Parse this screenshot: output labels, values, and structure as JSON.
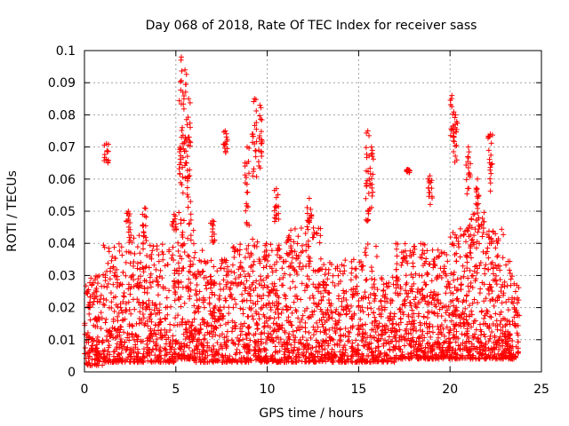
{
  "chart_data": {
    "type": "scatter",
    "title": "Day 068 of 2018, Rate Of TEC Index for receiver sass",
    "xlabel": "GPS time / hours",
    "ylabel": "ROTI / TECUs",
    "xlim": [
      0,
      25
    ],
    "ylim": [
      0,
      0.1
    ],
    "x_ticks": [
      0,
      5,
      10,
      15,
      20,
      25
    ],
    "y_ticks": [
      0,
      0.01,
      0.02,
      0.03,
      0.04,
      0.05,
      0.06,
      0.07,
      0.08,
      0.09,
      0.1
    ],
    "x_tick_labels": [
      "0",
      "5",
      "10",
      "15",
      "20",
      "25"
    ],
    "y_tick_labels": [
      "0",
      "0.01",
      "0.02",
      "0.03",
      "0.04",
      "0.05",
      "0.06",
      "0.07",
      "0.08",
      "0.09",
      "0.1"
    ],
    "grid": true,
    "marker": "+",
    "marker_color": "#ff0000",
    "series": [
      {
        "bands": [
          {
            "x_range": [
              0,
              1
            ],
            "y_range": [
              0.002,
              0.03
            ],
            "density": 140
          },
          {
            "x_range": [
              1,
              2
            ],
            "y_range": [
              0.003,
              0.04
            ],
            "density": 140
          },
          {
            "x_range": [
              2,
              3
            ],
            "y_range": [
              0.003,
              0.045
            ],
            "density": 130
          },
          {
            "x_range": [
              3,
              4
            ],
            "y_range": [
              0.003,
              0.042
            ],
            "density": 140
          },
          {
            "x_range": [
              4,
              5
            ],
            "y_range": [
              0.003,
              0.04
            ],
            "density": 130
          },
          {
            "x_range": [
              5,
              6
            ],
            "y_range": [
              0.004,
              0.05
            ],
            "density": 150
          },
          {
            "x_range": [
              6,
              7
            ],
            "y_range": [
              0.003,
              0.038
            ],
            "density": 140
          },
          {
            "x_range": [
              7,
              8
            ],
            "y_range": [
              0.003,
              0.035
            ],
            "density": 130
          },
          {
            "x_range": [
              8,
              9
            ],
            "y_range": [
              0.003,
              0.04
            ],
            "density": 130
          },
          {
            "x_range": [
              9,
              10
            ],
            "y_range": [
              0.003,
              0.042
            ],
            "density": 150
          },
          {
            "x_range": [
              10,
              11
            ],
            "y_range": [
              0.003,
              0.04
            ],
            "density": 140
          },
          {
            "x_range": [
              11,
              12
            ],
            "y_range": [
              0.003,
              0.045
            ],
            "density": 140
          },
          {
            "x_range": [
              12,
              13
            ],
            "y_range": [
              0.003,
              0.045
            ],
            "density": 140
          },
          {
            "x_range": [
              13,
              14
            ],
            "y_range": [
              0.003,
              0.035
            ],
            "density": 130
          },
          {
            "x_range": [
              14,
              15
            ],
            "y_range": [
              0.003,
              0.035
            ],
            "density": 130
          },
          {
            "x_range": [
              15,
              16
            ],
            "y_range": [
              0.003,
              0.04
            ],
            "density": 130
          },
          {
            "x_range": [
              16,
              17
            ],
            "y_range": [
              0.003,
              0.03
            ],
            "density": 120
          },
          {
            "x_range": [
              17,
              18
            ],
            "y_range": [
              0.004,
              0.04
            ],
            "density": 150
          },
          {
            "x_range": [
              18,
              19
            ],
            "y_range": [
              0.004,
              0.04
            ],
            "density": 150
          },
          {
            "x_range": [
              19,
              20
            ],
            "y_range": [
              0.004,
              0.038
            ],
            "density": 150
          },
          {
            "x_range": [
              20,
              21
            ],
            "y_range": [
              0.004,
              0.045
            ],
            "density": 160
          },
          {
            "x_range": [
              21,
              22
            ],
            "y_range": [
              0.004,
              0.05
            ],
            "density": 160
          },
          {
            "x_range": [
              22,
              23
            ],
            "y_range": [
              0.004,
              0.045
            ],
            "density": 150
          },
          {
            "x_range": [
              23,
              23.8
            ],
            "y_range": [
              0.004,
              0.035
            ],
            "density": 110
          }
        ],
        "spikes": [
          {
            "x": 1.2,
            "y": [
              0.065,
              0.071
            ]
          },
          {
            "x": 2.4,
            "y": [
              0.04,
              0.05
            ]
          },
          {
            "x": 3.3,
            "y": [
              0.04,
              0.051
            ]
          },
          {
            "x": 4.9,
            "y": [
              0.044,
              0.049
            ]
          },
          {
            "x": 5.3,
            "y": [
              0.055,
              0.098
            ]
          },
          {
            "x": 5.5,
            "y": [
              0.06,
              0.094
            ]
          },
          {
            "x": 5.7,
            "y": [
              0.05,
              0.085
            ]
          },
          {
            "x": 7.0,
            "y": [
              0.04,
              0.047
            ]
          },
          {
            "x": 7.7,
            "y": [
              0.068,
              0.075
            ]
          },
          {
            "x": 8.9,
            "y": [
              0.045,
              0.07
            ]
          },
          {
            "x": 9.3,
            "y": [
              0.06,
              0.085
            ]
          },
          {
            "x": 9.6,
            "y": [
              0.063,
              0.083
            ]
          },
          {
            "x": 10.5,
            "y": [
              0.045,
              0.057
            ]
          },
          {
            "x": 12.3,
            "y": [
              0.045,
              0.054
            ]
          },
          {
            "x": 15.5,
            "y": [
              0.045,
              0.075
            ]
          },
          {
            "x": 15.7,
            "y": [
              0.05,
              0.07
            ]
          },
          {
            "x": 17.7,
            "y": [
              0.062,
              0.063
            ]
          },
          {
            "x": 18.9,
            "y": [
              0.052,
              0.061
            ]
          },
          {
            "x": 20.1,
            "y": [
              0.07,
              0.086
            ]
          },
          {
            "x": 20.3,
            "y": [
              0.065,
              0.08
            ]
          },
          {
            "x": 21.0,
            "y": [
              0.055,
              0.07
            ]
          },
          {
            "x": 21.5,
            "y": [
              0.045,
              0.06
            ]
          },
          {
            "x": 22.2,
            "y": [
              0.055,
              0.074
            ]
          }
        ]
      }
    ]
  }
}
